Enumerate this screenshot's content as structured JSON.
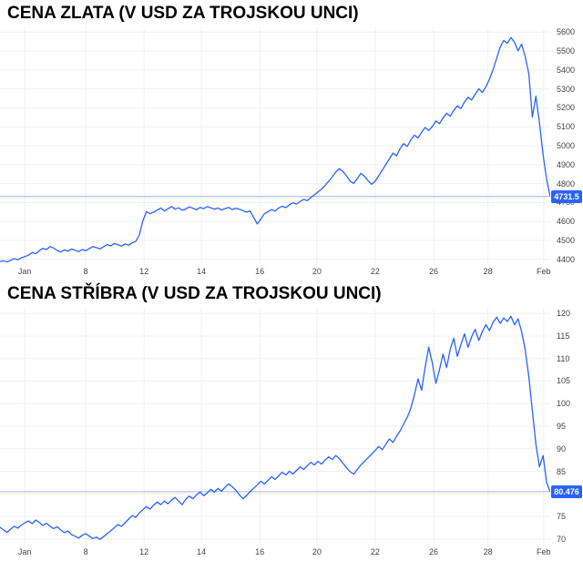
{
  "chart_data": [
    {
      "type": "line",
      "title": "CENA ZLATA (V USD ZA TROJSKOU UNCI)",
      "line_color": "#2962ff",
      "badge_color": "#2962ff",
      "badge_text_color": "#ffffff",
      "last_label": "4731.5",
      "ylim": [
        4375,
        5625
      ],
      "y_ticks": [
        4400,
        4500,
        4600,
        4700,
        4800,
        4900,
        5000,
        5100,
        5200,
        5300,
        5400,
        5500,
        5600
      ],
      "x_ticks": [
        {
          "label": "Jan",
          "pos": 0.045
        },
        {
          "label": "8",
          "pos": 0.156
        },
        {
          "label": "12",
          "pos": 0.262
        },
        {
          "label": "14",
          "pos": 0.366
        },
        {
          "label": "16",
          "pos": 0.472
        },
        {
          "label": "20",
          "pos": 0.576
        },
        {
          "label": "22",
          "pos": 0.682
        },
        {
          "label": "26",
          "pos": 0.788
        },
        {
          "label": "28",
          "pos": 0.887
        },
        {
          "label": "Feb",
          "pos": 0.988
        }
      ],
      "values": [
        4388,
        4393,
        4386,
        4395,
        4404,
        4398,
        4408,
        4415,
        4422,
        4436,
        4430,
        4446,
        4458,
        4452,
        4468,
        4460,
        4447,
        4439,
        4450,
        4443,
        4455,
        4448,
        4441,
        4452,
        4446,
        4457,
        4468,
        4462,
        4455,
        4467,
        4478,
        4471,
        4484,
        4477,
        4470,
        4481,
        4475,
        4487,
        4494,
        4530,
        4605,
        4652,
        4641,
        4649,
        4660,
        4671,
        4656,
        4667,
        4679,
        4665,
        4672,
        4659,
        4666,
        4677,
        4670,
        4662,
        4674,
        4668,
        4679,
        4672,
        4665,
        4671,
        4661,
        4668,
        4674,
        4663,
        4670,
        4665,
        4657,
        4649,
        4656,
        4621,
        4587,
        4612,
        4641,
        4652,
        4663,
        4655,
        4671,
        4681,
        4673,
        4688,
        4699,
        4692,
        4706,
        4717,
        4710,
        4726,
        4741,
        4756,
        4771,
        4791,
        4812,
        4836,
        4861,
        4879,
        4864,
        4841,
        4813,
        4801,
        4826,
        4854,
        4839,
        4816,
        4796,
        4812,
        4841,
        4871,
        4901,
        4931,
        4961,
        4946,
        4986,
        5011,
        4996,
        5031,
        5056,
        5041,
        5071,
        5096,
        5081,
        5101,
        5131,
        5116,
        5146,
        5171,
        5156,
        5186,
        5211,
        5196,
        5231,
        5256,
        5241,
        5271,
        5301,
        5281,
        5311,
        5351,
        5401,
        5461,
        5521,
        5556,
        5541,
        5571,
        5546,
        5501,
        5536,
        5471,
        5381,
        5151,
        5261,
        5121,
        4951,
        4821,
        4731.5
      ]
    },
    {
      "type": "line",
      "title": "CENA STŘÍBRA (V USD ZA TROJSKOU UNCI)",
      "line_color": "#2962ff",
      "badge_color": "#2962ff",
      "badge_text_color": "#ffffff",
      "last_label": "80.476",
      "ylim": [
        68.75,
        121.25
      ],
      "y_ticks": [
        70,
        75,
        80,
        85,
        90,
        95,
        100,
        105,
        110,
        115,
        120
      ],
      "x_ticks": [
        {
          "label": "Jan",
          "pos": 0.045
        },
        {
          "label": "8",
          "pos": 0.156
        },
        {
          "label": "12",
          "pos": 0.262
        },
        {
          "label": "14",
          "pos": 0.366
        },
        {
          "label": "16",
          "pos": 0.472
        },
        {
          "label": "20",
          "pos": 0.576
        },
        {
          "label": "22",
          "pos": 0.682
        },
        {
          "label": "26",
          "pos": 0.788
        },
        {
          "label": "28",
          "pos": 0.887
        },
        {
          "label": "Feb",
          "pos": 0.988
        }
      ],
      "values": [
        72.6,
        72.0,
        71.5,
        72.2,
        72.8,
        72.4,
        73.1,
        73.6,
        74.0,
        73.4,
        74.2,
        73.7,
        73.0,
        73.5,
        72.8,
        72.3,
        72.7,
        72.0,
        71.4,
        71.8,
        71.0,
        70.6,
        70.2,
        70.8,
        71.2,
        70.6,
        70.1,
        70.4,
        69.9,
        70.5,
        71.2,
        71.8,
        72.5,
        73.2,
        72.8,
        73.6,
        74.4,
        75.2,
        74.8,
        75.8,
        76.5,
        77.2,
        76.6,
        77.5,
        78.2,
        77.6,
        78.4,
        77.8,
        78.6,
        79.2,
        78.4,
        77.6,
        78.8,
        79.5,
        78.9,
        79.8,
        80.4,
        79.6,
        80.2,
        81.0,
        80.4,
        81.2,
        80.6,
        81.5,
        82.2,
        81.6,
        80.8,
        79.8,
        78.9,
        79.6,
        80.5,
        81.2,
        82.0,
        82.8,
        82.2,
        83.0,
        83.8,
        83.2,
        84.0,
        84.8,
        84.2,
        85.0,
        84.4,
        85.2,
        86.0,
        85.4,
        86.2,
        87.0,
        86.4,
        87.2,
        86.6,
        87.5,
        88.2,
        87.6,
        88.5,
        87.8,
        86.8,
        85.8,
        84.9,
        84.4,
        85.4,
        86.4,
        87.2,
        88.0,
        88.8,
        89.6,
        90.5,
        89.8,
        91.0,
        92.2,
        91.4,
        92.8,
        94.0,
        95.5,
        97.0,
        99.0,
        102.0,
        105.5,
        103.0,
        108.0,
        112.5,
        109.0,
        104.5,
        107.5,
        111.0,
        108.0,
        112.0,
        114.5,
        110.5,
        113.0,
        115.5,
        112.5,
        114.8,
        116.5,
        114.0,
        116.0,
        117.5,
        116.2,
        118.0,
        119.2,
        117.8,
        119.0,
        118.2,
        119.4,
        117.5,
        118.8,
        116.0,
        112.0,
        106.0,
        98.5,
        91.0,
        86.0,
        88.5,
        82.5,
        80.476
      ]
    }
  ]
}
